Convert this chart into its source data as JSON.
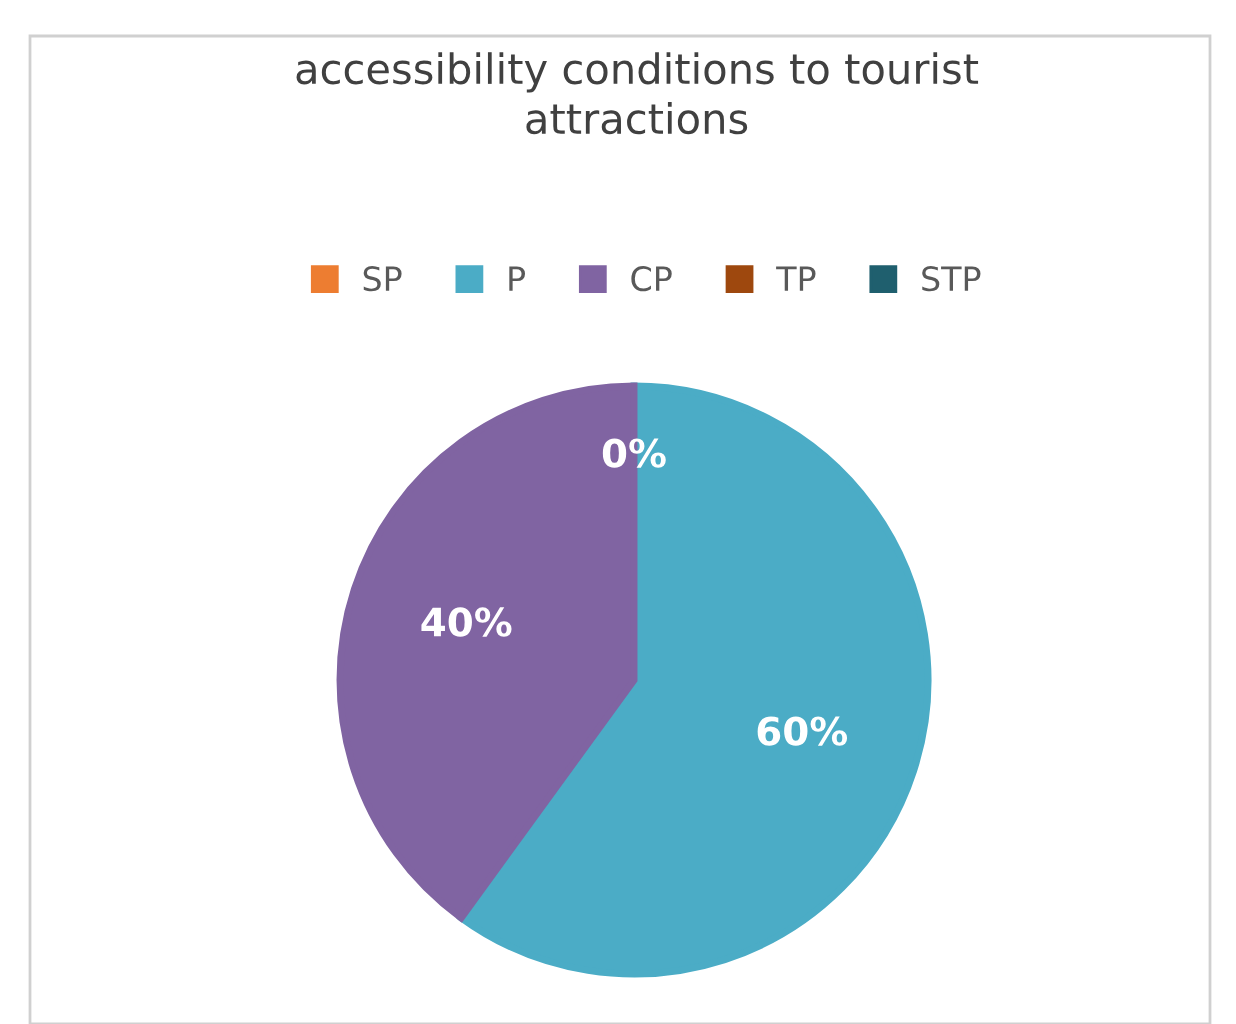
{
  "chart_data": {
    "type": "pie",
    "title": "accessibility conditions to tourist\nattractions",
    "categories": [
      "SP",
      "P",
      "CP",
      "TP",
      "STP"
    ],
    "values": [
      0,
      60,
      40,
      0,
      0
    ],
    "colors": [
      "#ed7d31",
      "#4bacc6",
      "#8064a2",
      "#9e480e",
      "#1f5f6e"
    ],
    "value_labels": [
      "0%",
      "60%",
      "40%",
      null,
      null
    ],
    "legend": "top"
  }
}
